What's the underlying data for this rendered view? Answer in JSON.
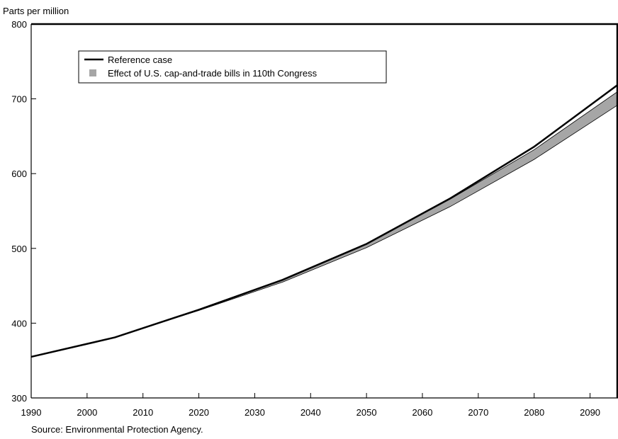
{
  "chart_data": {
    "type": "area",
    "y_unit_label": "Parts per million",
    "ylim": [
      300,
      800
    ],
    "xlim": [
      1990,
      2095
    ],
    "y_ticks": [
      300,
      400,
      500,
      600,
      700,
      800
    ],
    "x_ticks": [
      1990,
      2000,
      2010,
      2020,
      2030,
      2040,
      2050,
      2060,
      2070,
      2080,
      2090
    ],
    "legend": {
      "placement": "top-left",
      "items": [
        {
          "label": "Reference case",
          "symbol": "line",
          "color": "#000000"
        },
        {
          "label": "Effect of U.S. cap-and-trade bills in 110th Congress",
          "symbol": "band",
          "color": "#a6a6a6"
        }
      ]
    },
    "series": [
      {
        "name": "Reference case",
        "x": [
          1990,
          2005,
          2020,
          2035,
          2050,
          2065,
          2080,
          2095
        ],
        "values": [
          355,
          381,
          418,
          458,
          506,
          567,
          636,
          719
        ]
      },
      {
        "name": "Effect of U.S. cap-and-trade bills in 110th Congress",
        "x": [
          1990,
          2005,
          2020,
          2035,
          2050,
          2065,
          2080,
          2095
        ],
        "upper": [
          355,
          381,
          418,
          458,
          506,
          566,
          632,
          710
        ],
        "lower": [
          355,
          381,
          417,
          455,
          501,
          556,
          619,
          692
        ]
      }
    ],
    "source": "Source: Environmental Protection Agency.",
    "grid": false
  }
}
